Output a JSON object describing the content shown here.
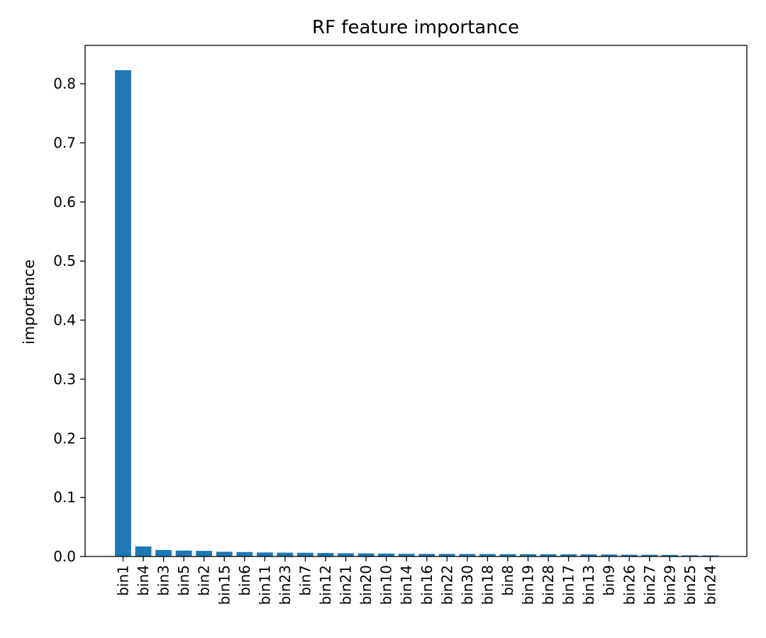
{
  "chart_data": {
    "type": "bar",
    "title": "RF feature importance",
    "xlabel": "",
    "ylabel": "importance",
    "ylim": [
      0,
      0.865
    ],
    "yticks": [
      0.0,
      0.1,
      0.2,
      0.3,
      0.4,
      0.5,
      0.6,
      0.7,
      0.8
    ],
    "ytick_labels": [
      "0.0",
      "0.1",
      "0.2",
      "0.3",
      "0.4",
      "0.5",
      "0.6",
      "0.7",
      "0.8"
    ],
    "grid": false,
    "bar_color": "#1f77b4",
    "categories": [
      "bin1",
      "bin4",
      "bin3",
      "bin5",
      "bin2",
      "bin15",
      "bin6",
      "bin11",
      "bin23",
      "bin7",
      "bin12",
      "bin21",
      "bin20",
      "bin10",
      "bin14",
      "bin16",
      "bin22",
      "bin30",
      "bin18",
      "bin8",
      "bin19",
      "bin28",
      "bin17",
      "bin13",
      "bin9",
      "bin26",
      "bin27",
      "bin29",
      "bin25",
      "bin24"
    ],
    "values": [
      0.823,
      0.017,
      0.011,
      0.01,
      0.0095,
      0.008,
      0.0075,
      0.0068,
      0.0065,
      0.0063,
      0.006,
      0.0055,
      0.0053,
      0.005,
      0.0045,
      0.0044,
      0.0043,
      0.0042,
      0.0041,
      0.004,
      0.0039,
      0.0038,
      0.0037,
      0.0036,
      0.0033,
      0.003,
      0.0029,
      0.0027,
      0.002,
      0.0018
    ]
  }
}
